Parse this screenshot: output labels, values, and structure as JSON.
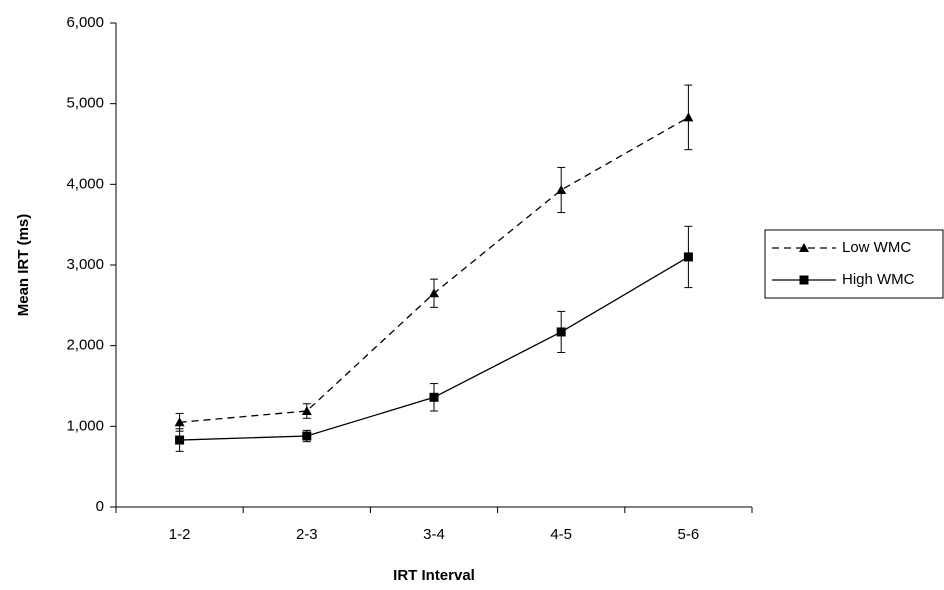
{
  "chart_data": {
    "type": "line",
    "x_label": "IRT Interval",
    "y_label": "Mean IRT (ms)",
    "categories": [
      "1-2",
      "2-3",
      "3-4",
      "4-5",
      "5-6"
    ],
    "series": [
      {
        "name": "Low WMC",
        "color": "#000000",
        "line_style": "dashed",
        "marker": "triangle",
        "values": [
          1050,
          1190,
          2650,
          3930,
          4830
        ],
        "errors": [
          110,
          90,
          175,
          280,
          400
        ]
      },
      {
        "name": "High WMC",
        "color": "#000000",
        "line_style": "solid",
        "marker": "square",
        "values": [
          830,
          880,
          1360,
          2170,
          3100
        ],
        "errors": [
          140,
          70,
          170,
          255,
          380
        ]
      }
    ],
    "ylim": [
      0,
      6000
    ],
    "yticks": [
      0,
      {
        "value": 1000,
        "label": "1,000"
      },
      {
        "value": 2000,
        "label": "2,000"
      },
      {
        "value": 3000,
        "label": "3,000"
      },
      {
        "value": 4000,
        "label": "4,000"
      },
      {
        "value": 5000,
        "label": "5,000"
      },
      {
        "value": 6000,
        "label": "6,000"
      }
    ],
    "grid": false,
    "legend": "right"
  }
}
